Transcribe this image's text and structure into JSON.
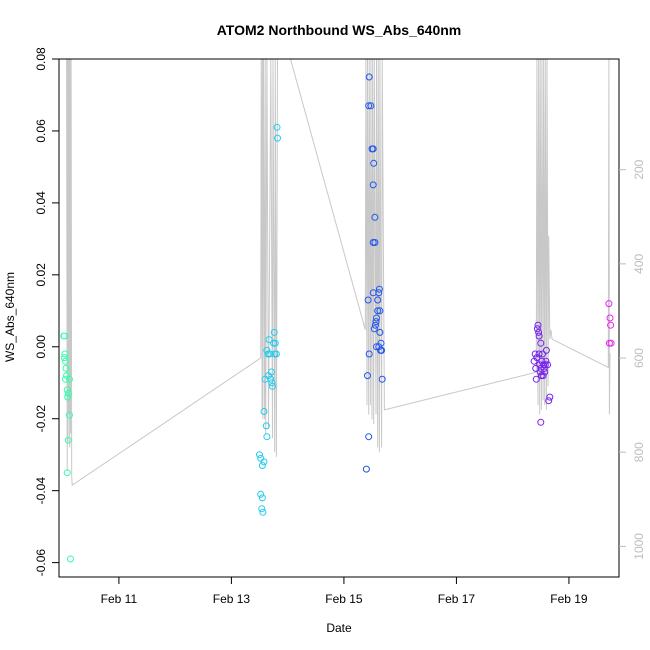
{
  "chart_data": {
    "type": "scatter",
    "title": "ATOM2 Northbound WS_Abs_640nm",
    "xlabel": "Date",
    "ylabel": "WS_Abs_640nm",
    "ylim": [
      -0.064,
      0.08
    ],
    "xlim": [
      9.935,
      19.89
    ],
    "x_tick_values": [
      11,
      13,
      15,
      17,
      19
    ],
    "x_tick_labels": [
      "Feb 11",
      "Feb 13",
      "Feb 15",
      "Feb 17",
      "Feb 19"
    ],
    "y_tick_values": [
      -0.06,
      -0.04,
      -0.02,
      0.0,
      0.02,
      0.04,
      0.06,
      0.08
    ],
    "y_tick_labels": [
      "-0.06",
      "-0.04",
      "-0.02",
      "0.00",
      "0.02",
      "0.04",
      "0.06",
      "0.08"
    ],
    "y2lim": [
      -35,
      1065
    ],
    "y2_tick_values": [
      200,
      400,
      600,
      800,
      1000
    ],
    "y2_tick_labels": [
      "200",
      "400",
      "600",
      "800",
      "1000"
    ],
    "y2_inverted": true,
    "depth_line_color": "#c8c8c8",
    "depth_trace": [
      [
        10.07,
        -35
      ],
      [
        10.08,
        840
      ],
      [
        10.085,
        -35
      ],
      [
        10.095,
        780
      ],
      [
        10.1,
        -35
      ],
      [
        10.11,
        720
      ],
      [
        10.115,
        -35
      ],
      [
        10.125,
        790
      ],
      [
        10.13,
        -35
      ],
      [
        10.14,
        760
      ],
      [
        10.15,
        -35
      ],
      [
        10.16,
        850
      ],
      [
        10.17,
        870
      ],
      [
        13.52,
        600
      ],
      [
        13.53,
        -35
      ],
      [
        13.545,
        710
      ],
      [
        13.55,
        -35
      ],
      [
        13.56,
        730
      ],
      [
        13.57,
        -35
      ],
      [
        13.59,
        730
      ],
      [
        13.6,
        -35
      ],
      [
        13.61,
        760
      ],
      [
        13.63,
        -35
      ],
      [
        13.66,
        750
      ],
      [
        13.7,
        -35
      ],
      [
        13.73,
        770
      ],
      [
        13.74,
        -35
      ],
      [
        13.77,
        800
      ],
      [
        13.78,
        -35
      ],
      [
        13.8,
        810
      ],
      [
        13.82,
        -35
      ],
      [
        14.05,
        -35
      ],
      [
        15.38,
        540
      ],
      [
        15.39,
        -35
      ],
      [
        15.41,
        700
      ],
      [
        15.42,
        -35
      ],
      [
        15.44,
        720
      ],
      [
        15.45,
        -35
      ],
      [
        15.47,
        700
      ],
      [
        15.48,
        -35
      ],
      [
        15.5,
        730
      ],
      [
        15.51,
        -35
      ],
      [
        15.53,
        740
      ],
      [
        15.54,
        -35
      ],
      [
        15.57,
        720
      ],
      [
        15.58,
        -35
      ],
      [
        15.6,
        790
      ],
      [
        15.61,
        -35
      ],
      [
        15.63,
        800
      ],
      [
        15.64,
        -35
      ],
      [
        15.67,
        790
      ],
      [
        15.68,
        -35
      ],
      [
        15.72,
        710
      ],
      [
        18.42,
        630
      ],
      [
        18.43,
        -35
      ],
      [
        18.45,
        700
      ],
      [
        18.46,
        -35
      ],
      [
        18.48,
        720
      ],
      [
        18.49,
        -35
      ],
      [
        18.51,
        710
      ],
      [
        18.52,
        -35
      ],
      [
        18.54,
        690
      ],
      [
        18.55,
        -35
      ],
      [
        18.57,
        700
      ],
      [
        18.58,
        -35
      ],
      [
        18.6,
        710
      ],
      [
        18.61,
        -35
      ],
      [
        18.63,
        660
      ],
      [
        18.64,
        340
      ],
      [
        18.66,
        560
      ],
      [
        18.68,
        540
      ],
      [
        18.7,
        560
      ],
      [
        19.7,
        620
      ],
      [
        19.71,
        -35
      ],
      [
        19.72,
        720
      ],
      [
        19.73,
        590
      ]
    ],
    "series": [
      {
        "color": "#33ffaa",
        "points": [
          [
            10.02,
            0.003
          ],
          [
            10.03,
            0.003
          ],
          [
            10.03,
            -0.003
          ],
          [
            10.04,
            -0.002
          ],
          [
            10.05,
            -0.004
          ],
          [
            10.05,
            -0.009
          ],
          [
            10.06,
            -0.006
          ],
          [
            10.07,
            -0.008
          ],
          [
            10.08,
            -0.012
          ],
          [
            10.09,
            -0.014
          ],
          [
            10.1,
            -0.013
          ],
          [
            10.12,
            -0.009
          ],
          [
            10.1,
            -0.026
          ],
          [
            10.12,
            -0.019
          ],
          [
            10.08,
            -0.035
          ],
          [
            10.14,
            -0.059
          ]
        ]
      },
      {
        "color": "#22ccee",
        "points": [
          [
            13.5,
            -0.03
          ],
          [
            13.52,
            -0.031
          ],
          [
            13.55,
            -0.033
          ],
          [
            13.58,
            -0.032
          ],
          [
            13.52,
            -0.041
          ],
          [
            13.55,
            -0.042
          ],
          [
            13.54,
            -0.045
          ],
          [
            13.56,
            -0.046
          ],
          [
            13.58,
            -0.018
          ],
          [
            13.62,
            -0.022
          ],
          [
            13.63,
            -0.025
          ],
          [
            13.6,
            -0.009
          ],
          [
            13.63,
            -0.001
          ],
          [
            13.65,
            -0.002
          ],
          [
            13.66,
            -0.008
          ],
          [
            13.67,
            0.002
          ],
          [
            13.68,
            -0.002
          ],
          [
            13.7,
            -0.009
          ],
          [
            13.71,
            -0.007
          ],
          [
            13.72,
            -0.01
          ],
          [
            13.73,
            -0.011
          ],
          [
            13.75,
            0.001
          ],
          [
            13.76,
            0.004
          ],
          [
            13.77,
            -0.002
          ],
          [
            13.78,
            0.001
          ],
          [
            13.8,
            -0.002
          ],
          [
            13.81,
            0.061
          ],
          [
            13.82,
            0.058
          ]
        ]
      },
      {
        "color": "#2255ee",
        "points": [
          [
            15.4,
            -0.034
          ],
          [
            15.42,
            -0.008
          ],
          [
            15.44,
            -0.025
          ],
          [
            15.45,
            -0.002
          ],
          [
            15.43,
            0.013
          ],
          [
            15.44,
            0.067
          ],
          [
            15.45,
            0.075
          ],
          [
            15.48,
            0.067
          ],
          [
            15.5,
            0.055
          ],
          [
            15.52,
            0.055
          ],
          [
            15.52,
            0.045
          ],
          [
            15.53,
            0.051
          ],
          [
            15.55,
            0.036
          ],
          [
            15.52,
            0.029
          ],
          [
            15.55,
            0.029
          ],
          [
            15.52,
            0.015
          ],
          [
            15.54,
            0.005
          ],
          [
            15.56,
            0.006
          ],
          [
            15.57,
            0.007
          ],
          [
            15.58,
            0.008
          ],
          [
            15.6,
            0.01
          ],
          [
            15.6,
            0.013
          ],
          [
            15.62,
            0.015
          ],
          [
            15.63,
            0.016
          ],
          [
            15.64,
            0.01
          ],
          [
            15.58,
            0.0
          ],
          [
            15.62,
            0.0
          ],
          [
            15.64,
            0.004
          ],
          [
            15.65,
            -0.001
          ],
          [
            15.67,
            -0.001
          ],
          [
            15.66,
            0.001
          ],
          [
            15.68,
            -0.009
          ]
        ]
      },
      {
        "color": "#7722ee",
        "points": [
          [
            18.38,
            -0.004
          ],
          [
            18.4,
            -0.002
          ],
          [
            18.41,
            -0.006
          ],
          [
            18.42,
            -0.009
          ],
          [
            18.43,
            -0.003
          ],
          [
            18.44,
            0.005
          ],
          [
            18.45,
            0.006
          ],
          [
            18.46,
            0.004
          ],
          [
            18.47,
            -0.002
          ],
          [
            18.48,
            -0.005
          ],
          [
            18.49,
            -0.007
          ],
          [
            18.5,
            0.001
          ],
          [
            18.5,
            -0.021
          ],
          [
            18.51,
            -0.008
          ],
          [
            18.52,
            -0.004
          ],
          [
            18.53,
            -0.002
          ],
          [
            18.55,
            -0.005
          ],
          [
            18.56,
            -0.006
          ],
          [
            18.57,
            -0.007
          ],
          [
            18.58,
            -0.005
          ],
          [
            18.6,
            -0.001
          ],
          [
            18.62,
            -0.005
          ],
          [
            18.64,
            -0.015
          ],
          [
            18.66,
            -0.014
          ],
          [
            18.5,
            -0.006
          ],
          [
            18.47,
            0.003
          ],
          [
            18.54,
            -0.008
          ],
          [
            18.59,
            -0.004
          ]
        ]
      },
      {
        "color": "#ee22ee",
        "points": [
          [
            19.71,
            0.012
          ],
          [
            19.73,
            0.008
          ],
          [
            19.74,
            0.006
          ],
          [
            19.72,
            0.001
          ],
          [
            19.75,
            0.001
          ]
        ]
      }
    ]
  }
}
